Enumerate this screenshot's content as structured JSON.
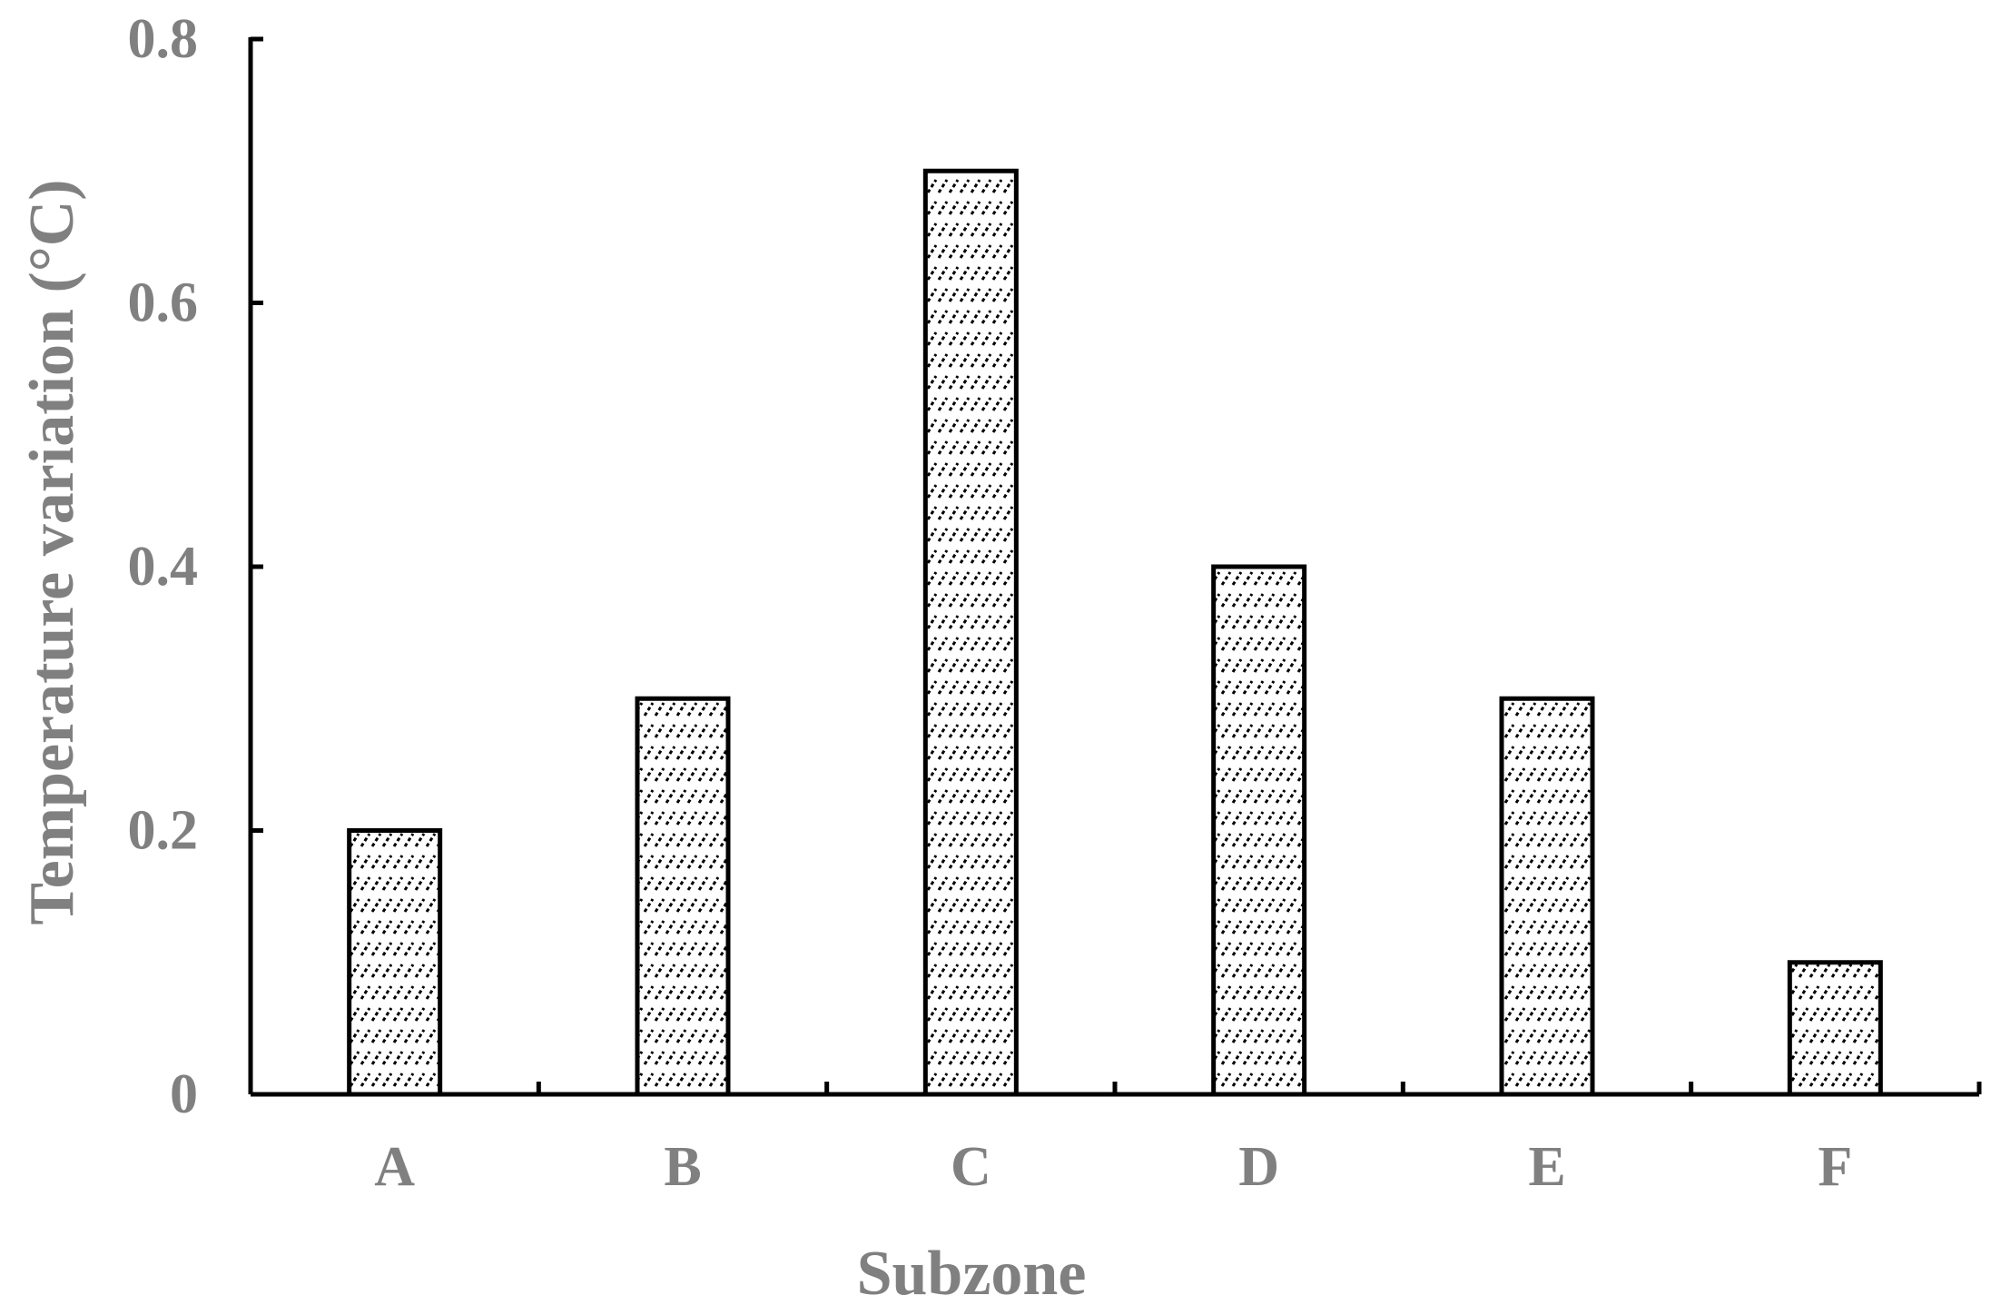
{
  "chart_data": {
    "type": "bar",
    "categories": [
      "A",
      "B",
      "C",
      "D",
      "E",
      "F"
    ],
    "values": [
      0.2,
      0.3,
      0.7,
      0.4,
      0.3,
      0.1
    ],
    "xlabel": "Subzone",
    "ylabel": "Temperature variation  (°C)",
    "ylim": [
      0,
      0.8
    ],
    "yticks": [
      "0",
      "0.2",
      "0.4",
      "0.6",
      "0.8"
    ],
    "grid": false,
    "bar_fill": "hatched",
    "colors": {
      "bar_stroke": "#000000",
      "text": "#808080",
      "axis": "#000000"
    }
  }
}
